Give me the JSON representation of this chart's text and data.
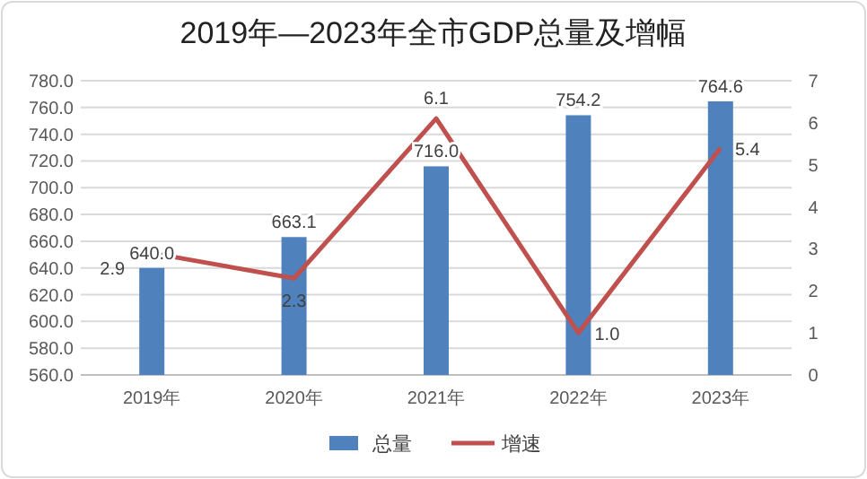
{
  "chart_data": {
    "type": "bar",
    "title": "2019年—2023年全市GDP总量及增幅",
    "categories": [
      "2019年",
      "2020年",
      "2021年",
      "2022年",
      "2023年"
    ],
    "series": [
      {
        "name": "总量",
        "color": "#4f81bd",
        "values": [
          640.0,
          663.1,
          716.0,
          754.2,
          764.6
        ],
        "value_labels": [
          "640.0",
          "663.1",
          "716.0",
          "754.2",
          "764.6"
        ]
      },
      {
        "name": "增速",
        "type": "line",
        "axis": "y2",
        "color": "#c0504d",
        "values": [
          2.9,
          2.3,
          6.1,
          1.0,
          5.4
        ],
        "value_labels": [
          "2.9",
          "2.3",
          "6.1",
          "1.0",
          "5.4"
        ]
      }
    ],
    "ylim": [
      560,
      780
    ],
    "yticks": [
      {
        "value": 560,
        "label": "560.0"
      },
      {
        "value": 580,
        "label": "580.0"
      },
      {
        "value": 600,
        "label": "600.0"
      },
      {
        "value": 620,
        "label": "620.0"
      },
      {
        "value": 640,
        "label": "640.0"
      },
      {
        "value": 660,
        "label": "660.0"
      },
      {
        "value": 680,
        "label": "680.0"
      },
      {
        "value": 700,
        "label": "700.0"
      },
      {
        "value": 720,
        "label": "720.0"
      },
      {
        "value": 740,
        "label": "740.0"
      },
      {
        "value": 760,
        "label": "760.0"
      },
      {
        "value": 780,
        "label": "780.0"
      }
    ],
    "y2lim": [
      0,
      7
    ],
    "y2ticks": [
      0,
      1,
      2,
      3,
      4,
      5,
      6,
      7
    ],
    "grid": "y",
    "legend": "bottom",
    "marker": "none",
    "line_style": "solid"
  }
}
